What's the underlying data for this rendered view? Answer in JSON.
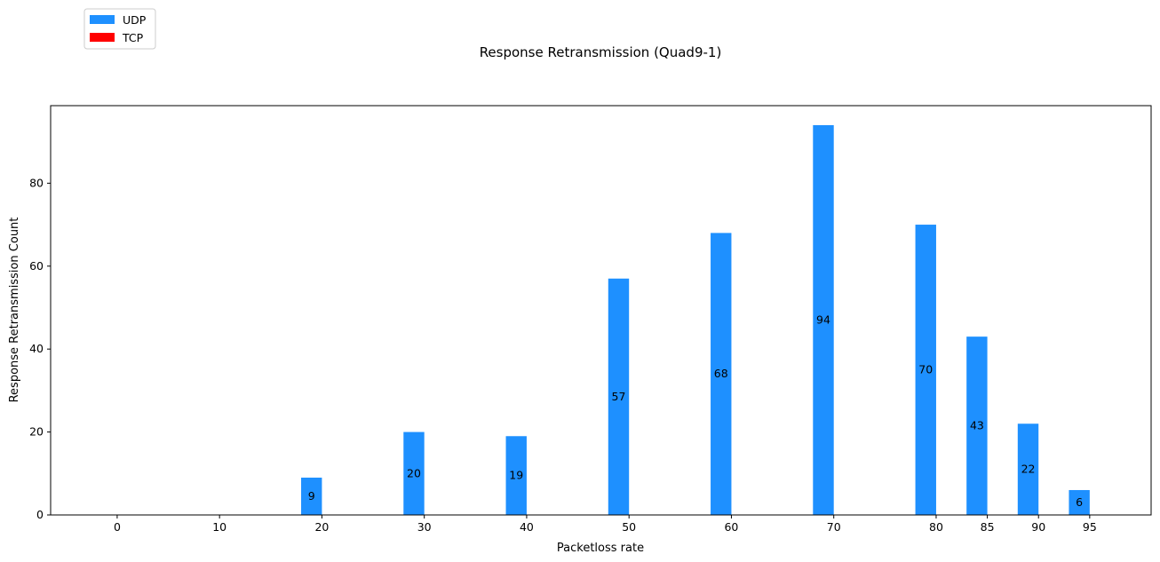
{
  "chart_data": {
    "type": "bar",
    "title": "Response Retransmission (Quad9-1)",
    "xlabel": "Packetloss rate",
    "ylabel": "Response Retransmission Count",
    "ylim": [
      0,
      98.7
    ],
    "yticks": [
      0,
      20,
      40,
      60,
      80
    ],
    "categories": [
      "0",
      "10",
      "20",
      "30",
      "40",
      "50",
      "60",
      "70",
      "80",
      "85",
      "90",
      "95"
    ],
    "grid": false,
    "legend_position": "top-left",
    "series": [
      {
        "name": "UDP",
        "color": "#1e90ff",
        "values": [
          0,
          0,
          9,
          20,
          19,
          57,
          68,
          94,
          70,
          43,
          22,
          6
        ],
        "labels": [
          "",
          "",
          "9",
          "20",
          "19",
          "57",
          "68",
          "94",
          "70",
          "43",
          "22",
          "6"
        ]
      },
      {
        "name": "TCP",
        "color": "#ff0000",
        "values": [
          0,
          0,
          0,
          0,
          0,
          0,
          0,
          0,
          0,
          0,
          0,
          0
        ],
        "labels": [
          "",
          "",
          "",
          "",
          "",
          "",
          "",
          "",
          "",
          "",
          "",
          ""
        ]
      }
    ]
  }
}
